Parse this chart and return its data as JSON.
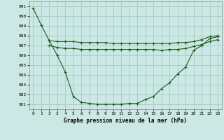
{
  "title": "Graphe pression niveau de la mer (hPa)",
  "bg_color": "#cbe8e4",
  "grid_color": "#a8cfc9",
  "line_color": "#1a5c1a",
  "x_ticks": [
    0,
    1,
    2,
    3,
    4,
    5,
    6,
    7,
    8,
    9,
    10,
    11,
    12,
    13,
    14,
    15,
    16,
    17,
    18,
    19,
    20,
    21,
    22,
    23
  ],
  "ylim": [
    980.5,
    991.5
  ],
  "yticks": [
    981,
    982,
    983,
    984,
    985,
    986,
    987,
    988,
    989,
    990,
    991
  ],
  "line1_x": [
    0,
    1,
    2,
    3,
    4,
    5,
    6,
    7,
    8,
    9,
    10,
    11,
    12,
    13,
    14,
    15,
    16,
    17,
    18,
    19,
    20,
    21,
    22,
    23
  ],
  "line1_y": [
    990.8,
    989.1,
    987.5,
    986.0,
    984.3,
    981.8,
    981.2,
    981.1,
    981.0,
    981.0,
    981.0,
    981.0,
    981.1,
    981.1,
    981.5,
    981.8,
    982.6,
    983.2,
    984.1,
    984.8,
    986.5,
    987.0,
    987.7,
    987.9
  ],
  "line2_x": [
    2,
    3,
    4,
    5,
    6,
    7,
    8,
    9,
    10,
    11,
    12,
    13,
    14,
    15,
    16,
    17,
    18,
    19,
    20,
    21,
    22,
    23
  ],
  "line2_y": [
    987.5,
    987.4,
    987.4,
    987.4,
    987.3,
    987.3,
    987.3,
    987.3,
    987.2,
    987.2,
    987.2,
    987.2,
    987.2,
    987.2,
    987.2,
    987.2,
    987.3,
    987.3,
    987.4,
    987.6,
    987.9,
    988.0
  ],
  "line3_x": [
    2,
    3,
    4,
    5,
    6,
    7,
    8,
    9,
    10,
    11,
    12,
    13,
    14,
    15,
    16,
    17,
    18,
    19,
    20,
    21,
    22,
    23
  ],
  "line3_y": [
    987.0,
    986.8,
    986.7,
    986.7,
    986.6,
    986.6,
    986.6,
    986.6,
    986.6,
    986.6,
    986.6,
    986.6,
    986.6,
    986.6,
    986.5,
    986.6,
    986.6,
    986.7,
    986.9,
    987.1,
    987.4,
    987.6
  ]
}
